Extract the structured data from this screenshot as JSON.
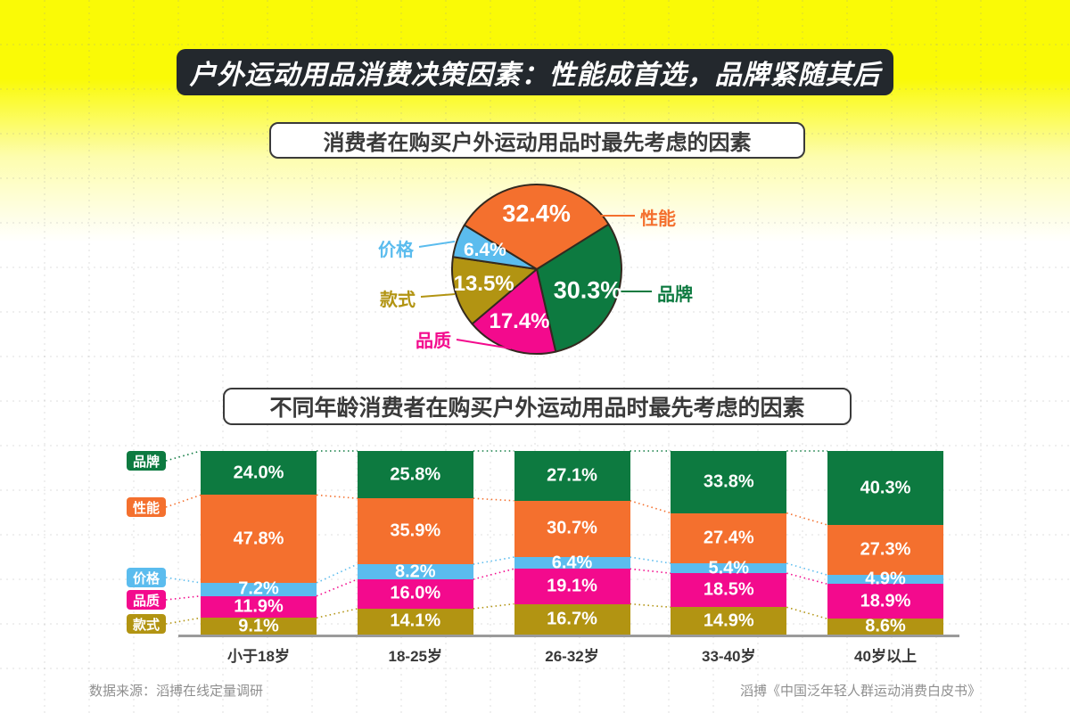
{
  "page": {
    "banner_title": "户外运动用品消费决策因素：性能成首选，品牌紧随其后",
    "footer": {
      "left": "数据来源：滔搏在线定量调研",
      "right": "滔搏《中国泛年轻人群运动消费白皮书》"
    }
  },
  "colors": {
    "brand_green": "#0D7A40",
    "performance_orange": "#F4702E",
    "price_blue": "#5BBCEE",
    "quality_pink": "#F30A8D",
    "style_olive": "#B29412",
    "banner_bg": "#23282D",
    "page_yellow": "#FAFA06",
    "pie_outline": "#33291F",
    "axis_gray": "#9B9B9B"
  },
  "chart_data": [
    {
      "type": "pie",
      "title": "消费者在购买户外运动用品时最先考虑的因素",
      "start_angle_deg": 32,
      "outline_color": "#33291F",
      "slices": [
        {
          "label": "品牌",
          "value": 30.3,
          "color": "#0D7A40"
        },
        {
          "label": "品质",
          "value": 17.4,
          "color": "#F30A8D"
        },
        {
          "label": "款式",
          "value": 13.5,
          "color": "#B29412"
        },
        {
          "label": "价格",
          "value": 6.4,
          "color": "#5BBCEE"
        },
        {
          "label": "性能",
          "value": 32.4,
          "color": "#F4702E"
        }
      ]
    },
    {
      "type": "bar",
      "subtype": "stacked-percent",
      "title": "不同年龄消费者在购买户外运动用品时最先考虑的因素",
      "categories": [
        "小于18岁",
        "18-25岁",
        "26-32岁",
        "33-40岁",
        "40岁以上"
      ],
      "series": [
        {
          "name": "品牌",
          "color": "#0D7A40",
          "values": [
            24.0,
            25.8,
            27.1,
            33.8,
            40.3
          ]
        },
        {
          "name": "性能",
          "color": "#F4702E",
          "values": [
            47.8,
            35.9,
            30.7,
            27.4,
            27.3
          ]
        },
        {
          "name": "价格",
          "color": "#5BBCEE",
          "values": [
            7.2,
            8.2,
            6.4,
            5.4,
            4.9
          ]
        },
        {
          "name": "品质",
          "color": "#F30A8D",
          "values": [
            11.9,
            16.0,
            19.1,
            18.5,
            18.9
          ]
        },
        {
          "name": "款式",
          "color": "#B29412",
          "values": [
            9.1,
            14.1,
            16.7,
            14.9,
            8.6
          ]
        }
      ],
      "value_suffix": "%",
      "ylim": [
        0,
        100
      ],
      "legend_position": "left",
      "grid": "dashed-background",
      "connectors": "dotted-between-bars"
    }
  ]
}
